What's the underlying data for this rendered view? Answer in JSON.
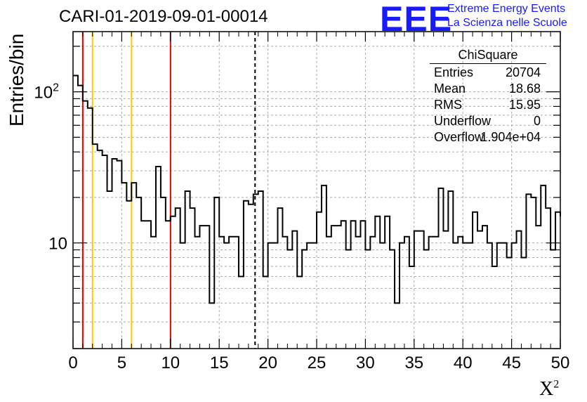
{
  "header": {
    "title": "CARI-01-2019-09-01-00014",
    "logo_text": "EEE",
    "logo_line1": "Extreme Energy Events",
    "logo_line2": "La Scienza nelle Scuole"
  },
  "stats_box": {
    "title": "ChiSquare",
    "entries_label": "Entries",
    "entries_value": "20704",
    "mean_label": "Mean",
    "mean_value": "18.68",
    "rms_label": "RMS",
    "rms_value": "15.95",
    "underflow_label": "Underflow",
    "underflow_value": "0",
    "overflow_label": "Overflow",
    "overflow_value": "1.904e+04"
  },
  "chart_data": {
    "type": "histogram",
    "title": "CARI-01-2019-09-01-00014",
    "xlabel": "X",
    "xlabel_superscript": "2",
    "ylabel": "Entries/bin",
    "xlim": [
      0,
      50
    ],
    "ylim": [
      2,
      250
    ],
    "yscale": "log",
    "grid": true,
    "bin_width": 0.5,
    "x_ticks": [
      "0",
      "5",
      "10",
      "15",
      "20",
      "25",
      "30",
      "35",
      "40",
      "45",
      "50"
    ],
    "y_tick_labels": [
      {
        "value": 10,
        "label": "10"
      },
      {
        "value": 100,
        "label": "10^2"
      }
    ],
    "values": [
      128,
      110,
      87,
      78,
      45,
      41,
      38,
      22,
      36,
      35,
      25,
      19,
      25,
      20,
      14,
      14,
      11,
      32,
      20,
      14,
      15,
      17,
      10,
      22,
      17,
      11,
      13,
      13,
      4,
      20,
      11,
      10,
      11,
      11,
      6,
      19,
      18,
      21,
      22,
      6,
      10,
      10,
      17,
      11,
      9,
      12,
      6,
      9,
      10,
      10,
      16,
      24,
      11,
      13,
      13,
      14,
      9,
      14,
      11,
      14,
      9,
      11,
      15,
      10,
      15,
      9,
      4,
      10,
      11,
      7,
      12,
      12,
      9,
      11,
      11,
      23,
      12,
      22,
      10,
      11,
      10,
      10,
      16,
      12,
      13,
      10,
      7,
      10,
      10,
      8,
      10,
      12,
      8,
      21,
      20,
      13,
      24,
      17,
      9,
      16,
      15
    ],
    "vertical_lines": [
      {
        "x": 1,
        "color": "#e00000",
        "style": "solid"
      },
      {
        "x": 2,
        "color": "#ffcc00",
        "style": "solid"
      },
      {
        "x": 6,
        "color": "#ffcc00",
        "style": "solid"
      },
      {
        "x": 10,
        "color": "#e00000",
        "style": "solid"
      },
      {
        "x": 18.68,
        "color": "#000000",
        "style": "dashed"
      }
    ]
  }
}
